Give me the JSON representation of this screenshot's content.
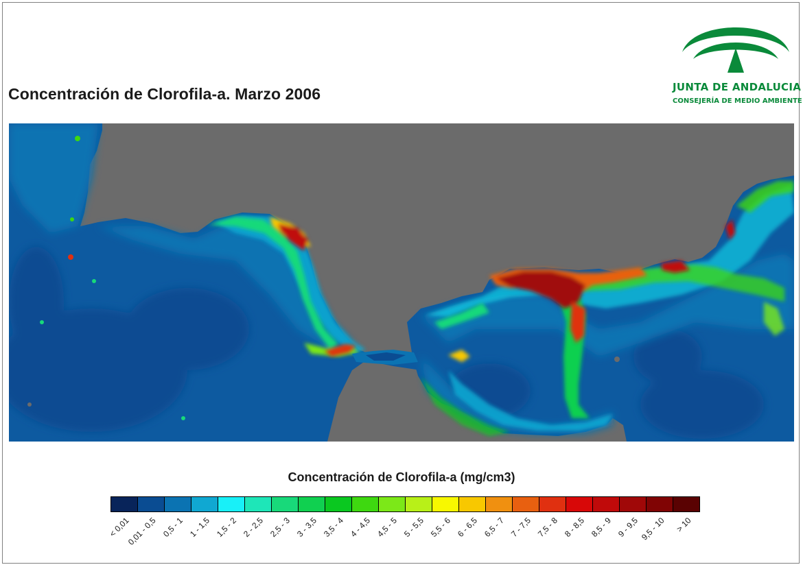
{
  "title": "Concentración de Clorofila-a. Marzo 2006",
  "logo": {
    "name": "JUNTA DE ANDALUCIA",
    "subtitle": "CONSEJERÍA DE MEDIO AMBIENTE",
    "brand_color": "#0a8a3a"
  },
  "map": {
    "land_color": "#6b6b6b",
    "base_ocean_color": "#0d5aa0"
  },
  "legend": {
    "title": "Concentración de Clorofila-a (mg/cm3)",
    "classes": [
      {
        "label": "< 0,01",
        "color": "#08245a"
      },
      {
        "label": "0,01 - 0,5",
        "color": "#0a4c92"
      },
      {
        "label": "0,5 - 1",
        "color": "#0b73b2"
      },
      {
        "label": "1 - 1,5",
        "color": "#10a8d2"
      },
      {
        "label": "1,5 - 2",
        "color": "#18f0f8"
      },
      {
        "label": "2 - 2,5",
        "color": "#1ee6b8"
      },
      {
        "label": "2,5 - 3",
        "color": "#18d97a"
      },
      {
        "label": "3 - 3,5",
        "color": "#10d050"
      },
      {
        "label": "3,5 - 4",
        "color": "#0ac820"
      },
      {
        "label": "4 - 4,5",
        "color": "#3ed810"
      },
      {
        "label": "4,5 - 5",
        "color": "#7ce818"
      },
      {
        "label": "5 - 5,5",
        "color": "#b8f018"
      },
      {
        "label": "5,5 - 6",
        "color": "#f8f800"
      },
      {
        "label": "6 - 6,5",
        "color": "#f8c800"
      },
      {
        "label": "6,5 - 7",
        "color": "#f09010"
      },
      {
        "label": "7 - 7,5",
        "color": "#e86010"
      },
      {
        "label": "7,5 - 8",
        "color": "#e03010"
      },
      {
        "label": "8 - 8,5",
        "color": "#d80808"
      },
      {
        "label": "8,5 - 9",
        "color": "#c00a0a"
      },
      {
        "label": "9 - 9,5",
        "color": "#a00808"
      },
      {
        "label": "9,5 - 10",
        "color": "#800404"
      },
      {
        "label": "> 10",
        "color": "#5a0202"
      }
    ]
  }
}
